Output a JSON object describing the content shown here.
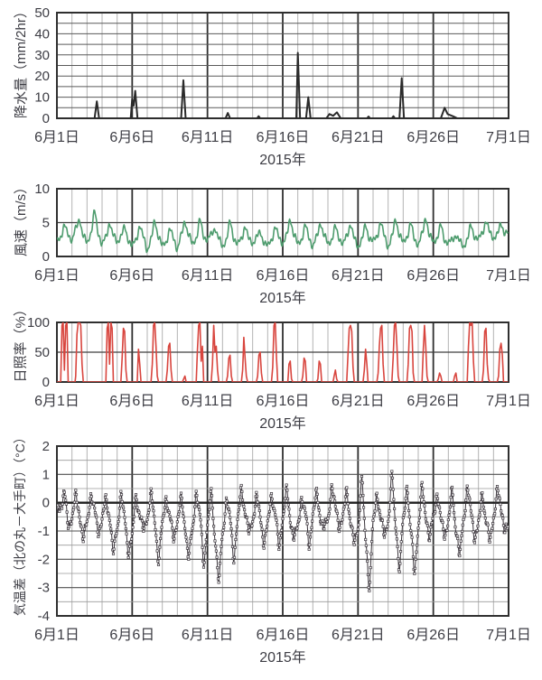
{
  "page": {
    "background": "#ffffff",
    "year_caption": "2015年"
  },
  "chart_data": [
    {
      "type": "line",
      "id": "precipitation",
      "ylabel": "降水量（mm/2hr）",
      "xlabel": "2015年",
      "ylim": [
        0,
        50
      ],
      "y_ticks": [
        0,
        10,
        20,
        30,
        40,
        50
      ],
      "y_grid_step": 5,
      "x_range_days": [
        0,
        30
      ],
      "x_tick_labels": [
        "6月1日",
        "6月6日",
        "6月11日",
        "6月16日",
        "6月21日",
        "6月26日",
        "7月1日"
      ],
      "x_tick_days": [
        0,
        5,
        10,
        15,
        20,
        25,
        30
      ],
      "grid": true,
      "legend": "none",
      "color": "#2a2a2a",
      "points_day_value": [
        [
          0,
          0
        ],
        [
          2.5,
          0
        ],
        [
          2.65,
          8
        ],
        [
          2.8,
          0
        ],
        [
          4.9,
          0
        ],
        [
          5.0,
          9
        ],
        [
          5.1,
          6
        ],
        [
          5.2,
          13
        ],
        [
          5.35,
          0
        ],
        [
          8.25,
          0
        ],
        [
          8.4,
          18
        ],
        [
          8.55,
          0
        ],
        [
          11.2,
          0
        ],
        [
          11.35,
          2.5
        ],
        [
          11.5,
          0
        ],
        [
          13.3,
          0
        ],
        [
          13.4,
          1
        ],
        [
          13.5,
          0
        ],
        [
          15.9,
          0
        ],
        [
          16.0,
          31
        ],
        [
          16.15,
          0
        ],
        [
          16.55,
          0
        ],
        [
          16.7,
          10
        ],
        [
          16.85,
          0
        ],
        [
          17.9,
          0
        ],
        [
          18.1,
          2
        ],
        [
          18.35,
          1.2
        ],
        [
          18.6,
          2.8
        ],
        [
          18.85,
          0
        ],
        [
          20.6,
          0
        ],
        [
          20.7,
          0.8
        ],
        [
          20.8,
          0
        ],
        [
          22.25,
          0
        ],
        [
          22.35,
          1
        ],
        [
          22.45,
          0
        ],
        [
          22.75,
          0
        ],
        [
          22.9,
          19
        ],
        [
          23.05,
          0
        ],
        [
          25.5,
          0
        ],
        [
          25.75,
          5
        ],
        [
          25.95,
          2
        ],
        [
          26.3,
          1
        ],
        [
          26.6,
          0
        ],
        [
          30,
          0
        ]
      ]
    },
    {
      "type": "line",
      "id": "wind-speed",
      "ylabel": "風速（m/s）",
      "xlabel": "2015年",
      "ylim": [
        0,
        10
      ],
      "y_ticks": [
        0,
        5,
        10
      ],
      "x_range_days": [
        0,
        30
      ],
      "x_tick_labels": [
        "6月1日",
        "6月6日",
        "6月11日",
        "6月16日",
        "6月21日",
        "6月26日",
        "7月1日"
      ],
      "x_tick_days": [
        0,
        5,
        10,
        15,
        20,
        25,
        30
      ],
      "grid": true,
      "legend": "none",
      "color": "#4e9c6e",
      "jitter": 0.3,
      "values_6hourly": [
        2.2,
        3.0,
        4.5,
        3.2,
        2.5,
        4.0,
        5.5,
        3.0,
        2.0,
        3.5,
        6.5,
        3.5,
        1.8,
        2.8,
        5.0,
        3.0,
        2.2,
        3.0,
        4.2,
        2.5,
        1.5,
        2.5,
        4.5,
        2.8,
        1.0,
        2.5,
        5.2,
        3.0,
        1.5,
        2.2,
        4.0,
        2.6,
        1.2,
        3.0,
        5.2,
        3.2,
        1.8,
        2.8,
        5.3,
        3.0,
        2.5,
        3.2,
        4.2,
        2.6,
        1.5,
        2.5,
        5.0,
        2.8,
        1.8,
        2.6,
        4.5,
        2.5,
        2.0,
        2.8,
        3.5,
        2.2,
        1.5,
        2.5,
        4.3,
        2.8,
        2.0,
        3.0,
        5.5,
        3.2,
        1.8,
        2.6,
        4.5,
        2.8,
        1.5,
        2.8,
        5.0,
        3.0,
        2.0,
        2.5,
        4.3,
        2.8,
        1.8,
        3.0,
        4.8,
        2.6,
        1.5,
        2.5,
        4.5,
        2.8,
        2.2,
        3.0,
        5.0,
        3.0,
        1.5,
        2.8,
        5.5,
        3.2,
        2.0,
        3.0,
        4.8,
        2.6,
        1.8,
        3.2,
        5.8,
        3.0,
        2.2,
        2.8,
        4.5,
        2.5,
        2.0,
        2.4,
        3.2,
        2.2,
        1.5,
        2.5,
        4.5,
        3.0,
        2.5,
        3.5,
        5.2,
        3.5,
        2.8,
        3.2,
        4.8,
        3.5
      ]
    },
    {
      "type": "line",
      "id": "sunshine-rate",
      "ylabel": "日照率（%）",
      "xlabel": "2015年",
      "ylim": [
        0,
        100
      ],
      "y_ticks": [
        0,
        50,
        100
      ],
      "x_range_days": [
        0,
        30
      ],
      "x_tick_labels": [
        "6月1日",
        "6月6日",
        "6月11日",
        "6月16日",
        "6月21日",
        "6月26日",
        "7月1日"
      ],
      "x_tick_days": [
        0,
        5,
        10,
        15,
        20,
        25,
        30
      ],
      "grid": true,
      "legend": "none",
      "color": "#d8453e",
      "daily_profile_hours": [
        6,
        8,
        10,
        12,
        14,
        16,
        18
      ],
      "daily_profiles": [
        [
          0,
          95,
          100,
          20,
          95,
          100,
          0
        ],
        [
          10,
          80,
          100,
          100,
          95,
          30,
          0
        ],
        [
          0,
          0,
          0,
          0,
          0,
          0,
          0
        ],
        [
          0,
          90,
          100,
          30,
          100,
          90,
          0
        ],
        [
          0,
          40,
          90,
          85,
          20,
          0,
          0
        ],
        [
          0,
          0,
          55,
          30,
          0,
          0,
          0
        ],
        [
          0,
          30,
          95,
          100,
          60,
          10,
          0
        ],
        [
          0,
          20,
          60,
          65,
          20,
          0,
          0
        ],
        [
          0,
          0,
          5,
          10,
          0,
          0,
          0
        ],
        [
          0,
          55,
          95,
          100,
          35,
          60,
          0
        ],
        [
          0,
          30,
          95,
          50,
          60,
          20,
          0
        ],
        [
          0,
          10,
          40,
          45,
          10,
          0,
          0
        ],
        [
          0,
          20,
          75,
          40,
          10,
          0,
          0
        ],
        [
          0,
          10,
          45,
          50,
          15,
          0,
          0
        ],
        [
          0,
          25,
          95,
          100,
          40,
          0,
          0
        ],
        [
          0,
          0,
          30,
          35,
          5,
          0,
          0
        ],
        [
          0,
          10,
          40,
          35,
          0,
          0,
          0
        ],
        [
          0,
          5,
          35,
          30,
          0,
          0,
          0
        ],
        [
          0,
          0,
          10,
          20,
          5,
          0,
          0
        ],
        [
          0,
          45,
          90,
          95,
          85,
          25,
          0
        ],
        [
          0,
          0,
          20,
          55,
          30,
          0,
          0
        ],
        [
          0,
          15,
          60,
          90,
          95,
          30,
          0
        ],
        [
          0,
          40,
          95,
          100,
          60,
          10,
          0
        ],
        [
          0,
          30,
          90,
          95,
          85,
          15,
          0
        ],
        [
          0,
          55,
          95,
          60,
          10,
          0,
          0
        ],
        [
          0,
          5,
          15,
          10,
          0,
          0,
          0
        ],
        [
          0,
          0,
          10,
          15,
          0,
          0,
          0
        ],
        [
          0,
          60,
          100,
          95,
          100,
          35,
          0
        ],
        [
          0,
          20,
          85,
          90,
          30,
          5,
          0
        ],
        [
          0,
          10,
          55,
          65,
          45,
          0,
          0
        ]
      ]
    },
    {
      "type": "line",
      "id": "temperature-difference",
      "ylabel": "気温差（北の丸－大手町）（°C）",
      "xlabel": "2015年",
      "ylim": [
        -4,
        2
      ],
      "y_ticks": [
        -4,
        -3,
        -2,
        -1,
        0,
        1,
        2
      ],
      "y_minor_step": 0.5,
      "zero_line": true,
      "marker": "open-square",
      "x_range_days": [
        0,
        30
      ],
      "x_tick_labels": [
        "6月1日",
        "6月6日",
        "6月11日",
        "6月16日",
        "6月21日",
        "6月26日",
        "7月1日"
      ],
      "x_tick_days": [
        0,
        5,
        10,
        15,
        20,
        25,
        30
      ],
      "grid": true,
      "legend": "none",
      "color": "#3a343b",
      "jitter": 0.12,
      "values_6hourly": [
        -0.3,
        -0.1,
        0.3,
        -0.8,
        -0.5,
        0.2,
        -0.4,
        -1.3,
        -0.7,
        0.3,
        -0.3,
        -1.0,
        -0.6,
        0.1,
        -0.5,
        -1.8,
        -0.9,
        0.3,
        -0.6,
        -1.7,
        -1.2,
        0.2,
        -0.4,
        -1.0,
        -0.5,
        0.3,
        -0.7,
        -2.0,
        -0.8,
        0.2,
        -0.5,
        -1.3,
        -0.6,
        0.1,
        -0.8,
        -1.9,
        -1.0,
        0.4,
        -0.5,
        -2.1,
        -0.8,
        0.3,
        -1.2,
        -2.8,
        -1.1,
        0.1,
        -0.6,
        -1.9,
        -0.7,
        0.5,
        -0.3,
        -1.1,
        -0.6,
        0.2,
        -0.5,
        -1.4,
        -0.8,
        0.3,
        -0.4,
        -1.6,
        -0.5,
        0.4,
        -0.6,
        -1.2,
        -0.9,
        0.2,
        -0.4,
        -1.5,
        -0.4,
        0.3,
        -0.5,
        -0.9,
        -0.6,
        0.6,
        -0.2,
        -0.8,
        -0.5,
        0.4,
        -0.6,
        -1.5,
        -0.9,
        0.8,
        -1.3,
        -2.9,
        -0.8,
        0.3,
        -0.5,
        -1.2,
        -0.6,
        0.9,
        -0.8,
        -2.3,
        -0.7,
        0.6,
        -1.0,
        -2.4,
        -0.9,
        0.5,
        -0.4,
        -1.3,
        -0.5,
        0.3,
        -0.6,
        -1.1,
        -0.7,
        0.4,
        -0.9,
        -1.9,
        -0.6,
        0.5,
        -0.3,
        -1.2,
        -0.8,
        0.3,
        -0.6,
        -1.4,
        -0.5,
        0.4,
        -0.2,
        -0.9
      ]
    }
  ]
}
